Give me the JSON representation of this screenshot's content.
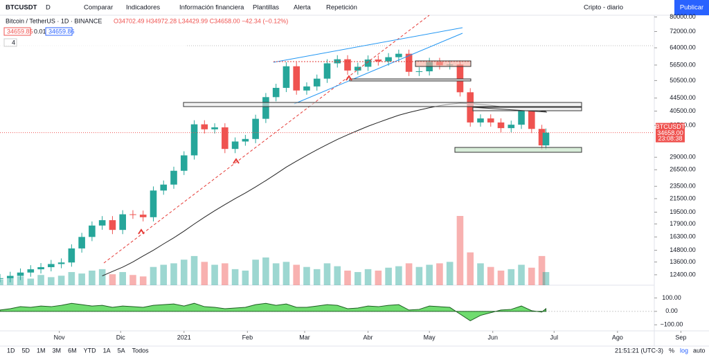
{
  "toolbar": {
    "symbol": "BTCUSDT",
    "interval": "D",
    "buttons": [
      "Comparar",
      "Indicadores",
      "Información financiera",
      "Plantillas",
      "Alerta",
      "Repetición"
    ],
    "layout": "Cripto - diario",
    "publish": "Publicar"
  },
  "legend": {
    "title": "Bitcoin / TetherUS · 1D · BINANCE",
    "ohlc": "O34702.49 H34972.28 L34429.99 C34658.00 −42.34 (−0.12%)",
    "bid": "34659.85",
    "spread": "0.01",
    "ask": "34659.86",
    "indicators": "4"
  },
  "chart_data": {
    "type": "candlestick",
    "x": [
      0,
      5,
      10,
      15,
      20,
      25,
      30,
      35,
      40,
      45,
      50,
      55,
      60,
      65,
      70,
      75,
      80,
      85,
      90,
      95,
      100,
      105,
      110,
      115,
      120,
      125,
      130,
      135,
      140,
      145,
      150,
      155,
      160,
      165,
      170,
      175,
      180,
      185,
      190,
      195,
      200,
      205,
      210,
      215,
      220,
      225,
      230,
      235,
      240,
      245,
      250,
      255,
      260,
      265,
      267
    ],
    "close": [
      12100,
      12300,
      12600,
      12900,
      13100,
      13400,
      13550,
      15000,
      16300,
      17700,
      18400,
      17150,
      19200,
      19150,
      18800,
      22800,
      23800,
      26300,
      29400,
      36800,
      35500,
      36000,
      30800,
      32500,
      33100,
      38300,
      44800,
      47900,
      56000,
      47000,
      48400,
      51200,
      57200,
      58900,
      54300,
      55800,
      58800,
      58000,
      59800,
      61300,
      53800,
      54000,
      57800,
      56400,
      56700,
      46400,
      37300,
      38400,
      37300,
      35800,
      36700,
      40500,
      35600,
      31600,
      34658
    ],
    "volume": [
      8,
      10,
      12,
      9,
      14,
      11,
      13,
      18,
      16,
      20,
      22,
      15,
      18,
      14,
      12,
      25,
      28,
      30,
      35,
      40,
      32,
      28,
      30,
      22,
      20,
      35,
      38,
      30,
      32,
      28,
      25,
      22,
      30,
      26,
      20,
      18,
      22,
      20,
      24,
      26,
      30,
      25,
      28,
      30,
      32,
      95,
      45,
      30,
      25,
      20,
      22,
      28,
      24,
      40,
      18
    ],
    "ma": [
      null,
      null,
      null,
      null,
      null,
      null,
      null,
      null,
      null,
      null,
      12300,
      12700,
      13100,
      13600,
      14200,
      14800,
      15500,
      16200,
      17000,
      17900,
      18800,
      19700,
      20600,
      21500,
      22400,
      23400,
      24500,
      25700,
      27000,
      28200,
      29400,
      30600,
      31800,
      33000,
      34100,
      35200,
      36300,
      37300,
      38300,
      39300,
      40100,
      40800,
      41500,
      42100,
      42600,
      42900,
      42800,
      42500,
      42200,
      41800,
      41500,
      41200,
      40800,
      40500,
      40400
    ],
    "oscillator": [
      10,
      20,
      35,
      30,
      40,
      35,
      45,
      60,
      50,
      40,
      45,
      30,
      40,
      35,
      30,
      45,
      50,
      55,
      40,
      60,
      35,
      30,
      20,
      25,
      30,
      50,
      60,
      45,
      55,
      30,
      30,
      40,
      50,
      45,
      20,
      25,
      40,
      35,
      45,
      50,
      10,
      15,
      40,
      35,
      30,
      -20,
      -70,
      -30,
      -10,
      10,
      15,
      40,
      5,
      -5,
      20
    ],
    "xlim": [
      0,
      320
    ],
    "xticks": [
      {
        "value": 29,
        "label": "Nov"
      },
      {
        "value": 59,
        "label": "Dic"
      },
      {
        "value": 90,
        "label": "2021"
      },
      {
        "value": 121,
        "label": "Feb"
      },
      {
        "value": 149,
        "label": "Mar"
      },
      {
        "value": 180,
        "label": "Abr"
      },
      {
        "value": 210,
        "label": "May"
      },
      {
        "value": 241,
        "label": "Jun"
      },
      {
        "value": 271,
        "label": "Jul"
      },
      {
        "value": 302,
        "label": "Ago"
      },
      {
        "value": 333,
        "label": "Sep"
      }
    ],
    "ylim": [
      11500,
      81000
    ],
    "log_scale": true,
    "yticks": [
      {
        "value": 80000,
        "label": "80000.00"
      },
      {
        "value": 72000,
        "label": "72000.00"
      },
      {
        "value": 64000,
        "label": "64000.00"
      },
      {
        "value": 56500,
        "label": "56500.00"
      },
      {
        "value": 50500,
        "label": "50500.00"
      },
      {
        "value": 44500,
        "label": "44500.00"
      },
      {
        "value": 40500,
        "label": "40500.00"
      },
      {
        "value": 36500,
        "label": "36500.00"
      },
      {
        "value": 29000,
        "label": "29000.00"
      },
      {
        "value": 26500,
        "label": "26500.00"
      },
      {
        "value": 23500,
        "label": "23500.00"
      },
      {
        "value": 21500,
        "label": "21500.00"
      },
      {
        "value": 19500,
        "label": "19500.00"
      },
      {
        "value": 17900,
        "label": "17900.00"
      },
      {
        "value": 16300,
        "label": "16300.00"
      },
      {
        "value": 14800,
        "label": "14800.00"
      },
      {
        "value": 13600,
        "label": "13600.00"
      },
      {
        "value": 12400,
        "label": "12400.00"
      }
    ],
    "oscillator_lim": [
      -145,
      195
    ],
    "oscillator_ticks": [
      {
        "value": 100,
        "label": "100.00"
      },
      {
        "value": 0,
        "label": "0.00"
      },
      {
        "value": -100,
        "label": "−100.00"
      }
    ],
    "colors": {
      "up": "#26a69a",
      "down": "#ef5350",
      "ma": "#222222",
      "oscillator": "#32cd32"
    },
    "last_price": {
      "symbol": "BTCUSDT",
      "value": 34658,
      "label": "34658.00",
      "countdown": "23:08:38"
    }
  },
  "bottom_bar": {
    "ranges": [
      "1D",
      "5D",
      "1M",
      "3M",
      "6M",
      "YTD",
      "1A",
      "5A",
      "Todos"
    ],
    "clock": "21:51:21 (UTC-3)",
    "percent": "%",
    "log": "log",
    "auto": "auto"
  }
}
